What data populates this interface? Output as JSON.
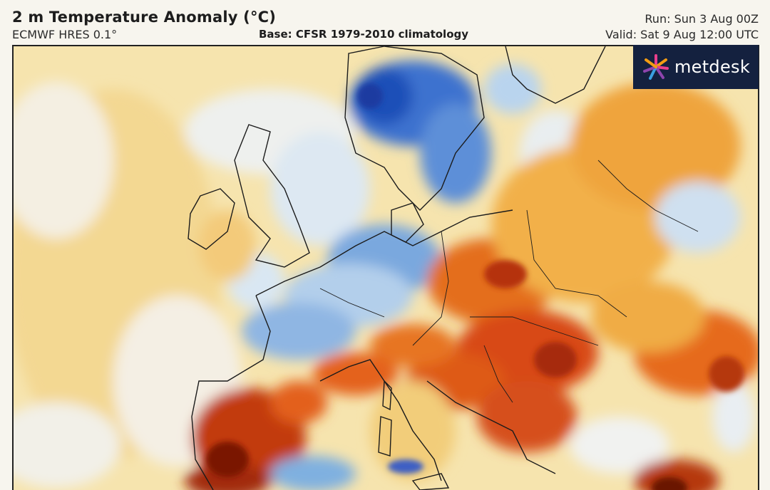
{
  "header": {
    "title": "2 m Temperature Anomaly (°C)",
    "model": "ECMWF HRES 0.1°",
    "base": "Base: CFSR 1979-2010 climatology",
    "run": "Run: Sun 3 Aug 00Z",
    "valid": "Valid: Sat 9 Aug 12:00 UTC"
  },
  "logo": {
    "text": "metdesk",
    "icon": "metdesk-starburst-icon",
    "colors": [
      "#e83e8c",
      "#8e44ad",
      "#f39c12",
      "#3aa0e0"
    ]
  },
  "map": {
    "region": "Europe",
    "colors": {
      "strong_warm": "#8a1a05",
      "warm": "#d8440f",
      "mild_warm": "#f0a040",
      "slight_warm": "#f6dc9a",
      "neutral": "#f4f1ea",
      "slight_cool": "#cfe3f4",
      "cool": "#7fb0e0",
      "strong_cool": "#2a62c9"
    }
  }
}
